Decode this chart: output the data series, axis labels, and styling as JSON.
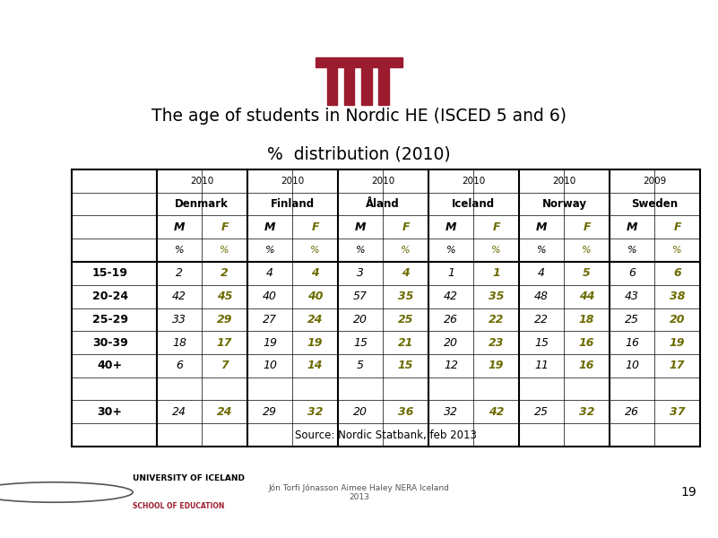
{
  "title_line1": "The age of students in Nordic HE (ISCED 5 and 6)",
  "title_line2": "%  distribution (2010)",
  "header_years": [
    "2010",
    "2010",
    "2010",
    "2010",
    "2010",
    "2009"
  ],
  "header_countries": [
    "Denmark",
    "Finland",
    "Åland",
    "Iceland",
    "Norway",
    "Sweden"
  ],
  "data": {
    "15-19": {
      "DK_M": 2,
      "DK_F": 2,
      "FI_M": 4,
      "FI_F": 4,
      "AL_M": 3,
      "AL_F": 4,
      "IC_M": 1,
      "IC_F": 1,
      "NO_M": 4,
      "NO_F": 5,
      "SW_M": 6,
      "SW_F": 6
    },
    "20-24": {
      "DK_M": 42,
      "DK_F": 45,
      "FI_M": 40,
      "FI_F": 40,
      "AL_M": 57,
      "AL_F": 35,
      "IC_M": 42,
      "IC_F": 35,
      "NO_M": 48,
      "NO_F": 44,
      "SW_M": 43,
      "SW_F": 38
    },
    "25-29": {
      "DK_M": 33,
      "DK_F": 29,
      "FI_M": 27,
      "FI_F": 24,
      "AL_M": 20,
      "AL_F": 25,
      "IC_M": 26,
      "IC_F": 22,
      "NO_M": 22,
      "NO_F": 18,
      "SW_M": 25,
      "SW_F": 20
    },
    "30-39": {
      "DK_M": 18,
      "DK_F": 17,
      "FI_M": 19,
      "FI_F": 19,
      "AL_M": 15,
      "AL_F": 21,
      "IC_M": 20,
      "IC_F": 23,
      "NO_M": 15,
      "NO_F": 16,
      "SW_M": 16,
      "SW_F": 19
    },
    "40+": {
      "DK_M": 6,
      "DK_F": 7,
      "FI_M": 10,
      "FI_F": 14,
      "AL_M": 5,
      "AL_F": 15,
      "IC_M": 12,
      "IC_F": 19,
      "NO_M": 11,
      "NO_F": 16,
      "SW_M": 10,
      "SW_F": 17
    },
    "30+": {
      "DK_M": 24,
      "DK_F": 24,
      "FI_M": 29,
      "FI_F": 32,
      "AL_M": 20,
      "AL_F": 36,
      "IC_M": 32,
      "IC_F": 42,
      "NO_M": 25,
      "NO_F": 32,
      "SW_M": 26,
      "SW_F": 37
    }
  },
  "bg_color": "#ffffff",
  "dark_red": "#9b1c2e",
  "olive_green": "#6b6b00",
  "source_text": "Source: Nordic Statbank, feb 2013",
  "footer_text": "Jón Torfi Jónasson Aimee Haley NERA Iceland\n2013",
  "page_number": "19"
}
